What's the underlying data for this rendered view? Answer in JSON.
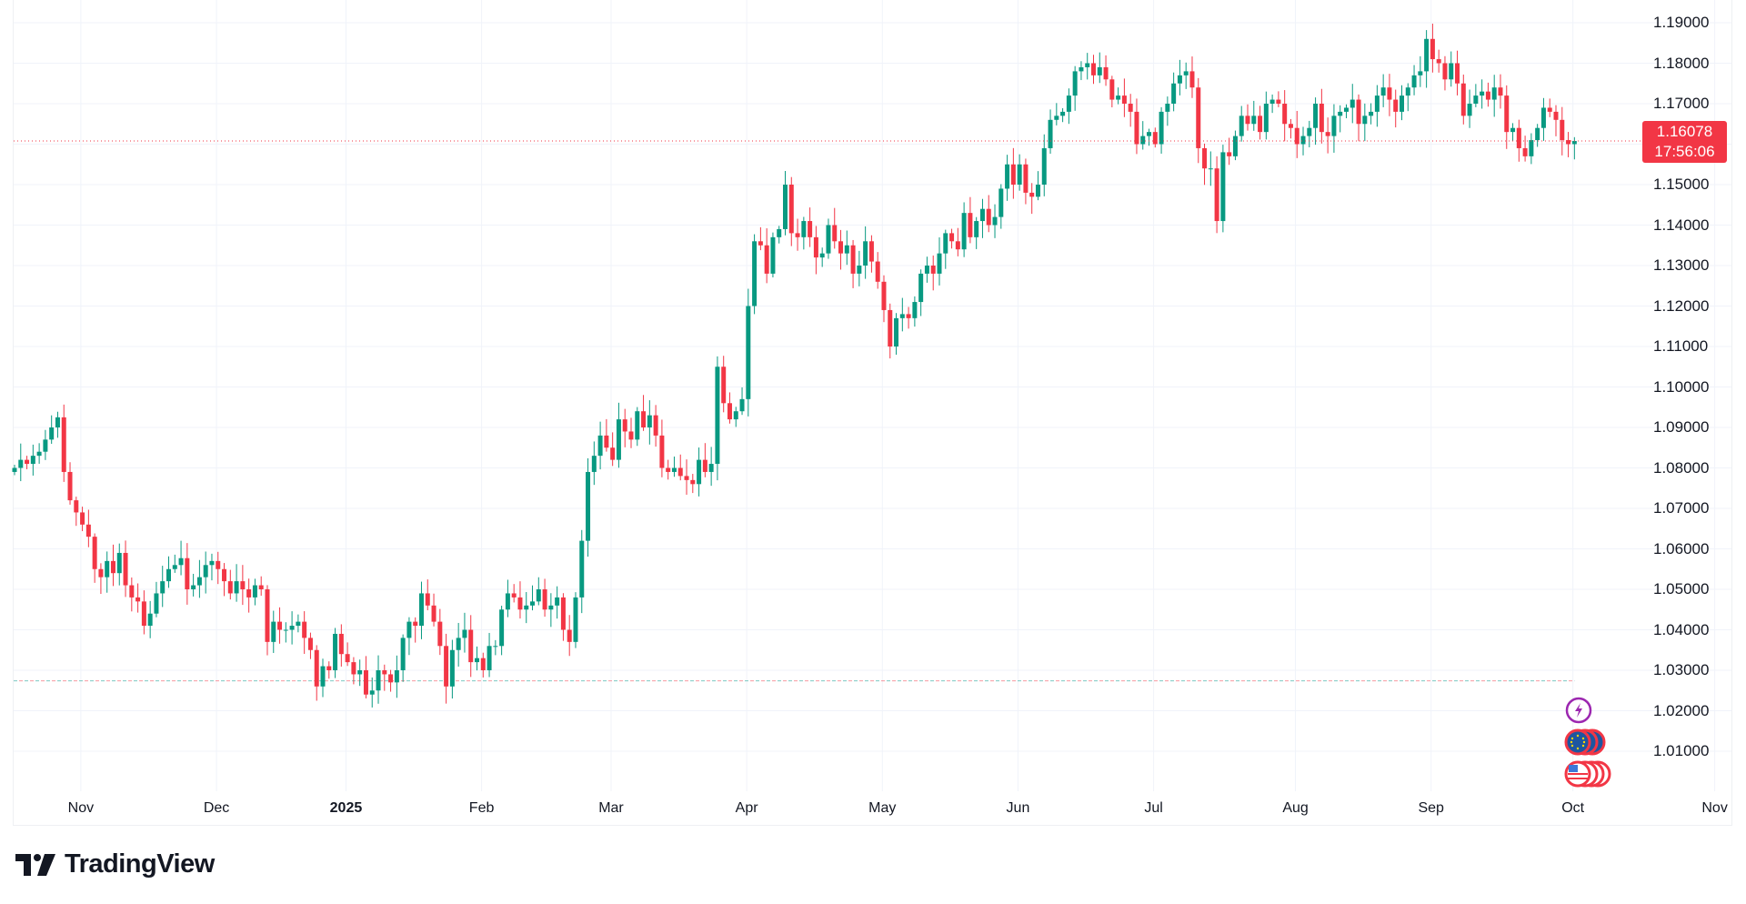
{
  "chart_data": {
    "type": "candlestick",
    "title": "",
    "xlabel": "",
    "ylabel": "",
    "ylim": [
      1.0,
      1.195
    ],
    "grid": true,
    "price_ticks": [
      "1.19000",
      "1.18000",
      "1.17000",
      "1.16000",
      "1.15000",
      "1.14000",
      "1.13000",
      "1.12000",
      "1.11000",
      "1.10000",
      "1.09000",
      "1.08000",
      "1.07000",
      "1.06000",
      "1.05000",
      "1.04000",
      "1.03000",
      "1.02000",
      "1.01000"
    ],
    "price_tick_values": [
      1.19,
      1.18,
      1.17,
      1.16,
      1.15,
      1.14,
      1.13,
      1.12,
      1.11,
      1.1,
      1.09,
      1.08,
      1.07,
      1.06,
      1.05,
      1.04,
      1.03,
      1.02,
      1.01
    ],
    "visible_price_ticks": [
      "1.19000",
      "1.18000",
      "1.17000",
      "1.15000",
      "1.14000",
      "1.13000",
      "1.12000",
      "1.11000",
      "1.10000",
      "1.09000",
      "1.08000",
      "1.07000",
      "1.06000",
      "1.05000",
      "1.04000",
      "1.03000",
      "1.02000",
      "1.01000"
    ],
    "time_ticks": [
      {
        "label": "Nov",
        "bar": 5,
        "bold": false
      },
      {
        "label": "Dec",
        "bar": 27,
        "bold": false
      },
      {
        "label": "2025",
        "bar": 48,
        "bold": true
      },
      {
        "label": "Feb",
        "bar": 70,
        "bold": false
      },
      {
        "label": "Mar",
        "bar": 91,
        "bold": false
      },
      {
        "label": "Apr",
        "bar": 113,
        "bold": false
      },
      {
        "label": "May",
        "bar": 135,
        "bold": false
      },
      {
        "label": "Jun",
        "bar": 157,
        "bold": false
      },
      {
        "label": "Jul",
        "bar": 179,
        "bold": false
      },
      {
        "label": "Aug",
        "bar": 202,
        "bold": false
      },
      {
        "label": "Sep",
        "bar": 224,
        "bold": false
      },
      {
        "label": "Oct",
        "bar": 247,
        "bold": false
      },
      {
        "label": "Nov",
        "bar": 270,
        "bold": false
      }
    ],
    "closes": [
      1.08,
      1.082,
      1.081,
      1.083,
      1.084,
      1.087,
      1.09,
      1.0925,
      1.079,
      1.072,
      1.069,
      1.066,
      1.063,
      1.055,
      1.053,
      1.057,
      1.054,
      1.059,
      1.051,
      1.048,
      1.047,
      1.041,
      1.044,
      1.049,
      1.052,
      1.055,
      1.056,
      1.0577,
      1.05,
      1.051,
      1.053,
      1.056,
      1.057,
      1.055,
      1.052,
      1.049,
      1.052,
      1.05,
      1.048,
      1.051,
      1.05,
      1.037,
      1.042,
      1.04,
      1.04,
      1.041,
      1.042,
      1.038,
      1.035,
      1.026,
      1.031,
      1.03,
      1.039,
      1.034,
      1.032,
      1.029,
      1.03,
      1.024,
      1.025,
      1.03,
      1.029,
      1.027,
      1.03,
      1.038,
      1.042,
      1.041,
      1.049,
      1.046,
      1.042,
      1.036,
      1.026,
      1.035,
      1.038,
      1.04,
      1.032,
      1.033,
      1.03,
      1.036,
      1.036,
      1.045,
      1.049,
      1.048,
      1.045,
      1.046,
      1.047,
      1.05,
      1.045,
      1.046,
      1.048,
      1.04,
      1.037,
      1.048,
      1.062,
      1.079,
      1.083,
      1.088,
      1.085,
      1.082,
      1.092,
      1.089,
      1.087,
      1.094,
      1.09,
      1.093,
      1.088,
      1.08,
      1.079,
      1.08,
      1.078,
      1.077,
      1.076,
      1.082,
      1.079,
      1.081,
      1.105,
      1.096,
      1.092,
      1.094,
      1.097,
      1.12,
      1.136,
      1.135,
      1.128,
      1.137,
      1.139,
      1.15,
      1.138,
      1.137,
      1.141,
      1.137,
      1.132,
      1.133,
      1.14,
      1.136,
      1.133,
      1.135,
      1.128,
      1.13,
      1.136,
      1.131,
      1.126,
      1.119,
      1.11,
      1.117,
      1.118,
      1.117,
      1.121,
      1.128,
      1.13,
      1.128,
      1.133,
      1.138,
      1.136,
      1.134,
      1.143,
      1.137,
      1.141,
      1.144,
      1.14,
      1.142,
      1.149,
      1.155,
      1.15,
      1.155,
      1.148,
      1.147,
      1.15,
      1.159,
      1.166,
      1.167,
      1.168,
      1.172,
      1.178,
      1.179,
      1.18,
      1.177,
      1.179,
      1.176,
      1.171,
      1.172,
      1.17,
      1.168,
      1.16,
      1.162,
      1.163,
      1.16,
      1.168,
      1.17,
      1.175,
      1.177,
      1.178,
      1.174,
      1.159,
      1.154,
      1.154,
      1.141,
      1.158,
      1.157,
      1.162,
      1.167,
      1.165,
      1.167,
      1.163,
      1.17,
      1.171,
      1.17,
      1.165,
      1.164,
      1.16,
      1.162,
      1.164,
      1.17,
      1.163,
      1.162,
      1.167,
      1.168,
      1.169,
      1.171,
      1.165,
      1.167,
      1.168,
      1.172,
      1.174,
      1.171,
      1.168,
      1.172,
      1.174,
      1.177,
      1.178,
      1.186,
      1.181,
      1.18,
      1.176,
      1.18,
      1.175,
      1.167,
      1.17,
      1.172,
      1.173,
      1.171,
      1.174,
      1.172,
      1.163,
      1.164,
      1.159,
      1.157,
      1.161,
      1.164,
      1.169,
      1.168,
      1.166,
      1.161,
      1.16,
      1.16078
    ],
    "first_open": 1.079,
    "last_price": "1.16078",
    "last_price_value": 1.16078,
    "countdown": "17:56:06",
    "reference_line_value": 1.0274,
    "colors": {
      "up": "#089981",
      "down": "#f23645",
      "grid": "#f0f3fa",
      "text": "#131722"
    }
  },
  "brand": {
    "name": "TradingView"
  },
  "event_badges": [
    {
      "icon": "lightning-icon",
      "color": "#9c27b0"
    },
    {
      "icon": "eu-flag-icon",
      "color": "#f23645"
    },
    {
      "icon": "us-flag-icon",
      "color": "#f23645"
    }
  ]
}
